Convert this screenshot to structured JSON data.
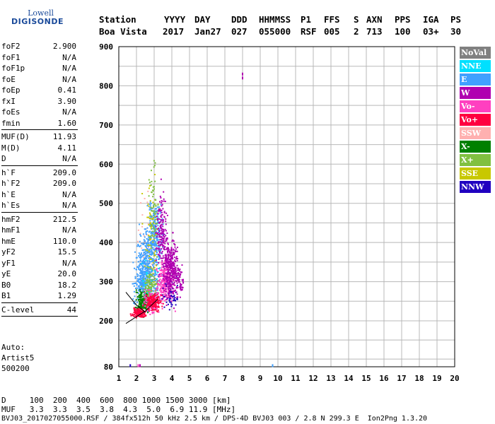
{
  "logo": {
    "line1": "Lowell",
    "line2": "DIGISONDE"
  },
  "header": {
    "labels": [
      "Station",
      "YYYY",
      "DAY",
      "DDD",
      "HHMMSS",
      "P1",
      "FFS",
      "S",
      "AXN",
      "PPS",
      "IGA",
      "PS"
    ],
    "values": [
      "Boa Vista",
      "2017",
      "Jan27",
      "027",
      "055000",
      "RSF",
      "005",
      "2",
      "713",
      "100",
      "03+",
      "30"
    ]
  },
  "params": [
    {
      "name": "foF2",
      "value": "2.900"
    },
    {
      "name": "foF1",
      "value": "N/A"
    },
    {
      "name": "foF1p",
      "value": "N/A"
    },
    {
      "name": "foE",
      "value": "N/A"
    },
    {
      "name": "foEp",
      "value": "0.41"
    },
    {
      "name": "fxI",
      "value": "3.90"
    },
    {
      "name": "foEs",
      "value": "N/A"
    },
    {
      "name": "fmin",
      "value": "1.60",
      "sep_after": true
    },
    {
      "name": "MUF(D)",
      "value": "11.93"
    },
    {
      "name": "M(D)",
      "value": "4.11"
    },
    {
      "name": "D",
      "value": "N/A",
      "sep_after": true
    },
    {
      "name": "h`F",
      "value": "209.0"
    },
    {
      "name": "h`F2",
      "value": "209.0"
    },
    {
      "name": "h`E",
      "value": "N/A"
    },
    {
      "name": "h`Es",
      "value": "N/A",
      "sep_after": true
    },
    {
      "name": "hmF2",
      "value": "212.5"
    },
    {
      "name": "hmF1",
      "value": "N/A"
    },
    {
      "name": "hmE",
      "value": "110.0"
    },
    {
      "name": "yF2",
      "value": "15.5"
    },
    {
      "name": "yF1",
      "value": "N/A"
    },
    {
      "name": "yE",
      "value": "20.0"
    },
    {
      "name": "B0",
      "value": "18.2"
    },
    {
      "name": "B1",
      "value": "1.29",
      "sep_after": true
    },
    {
      "name": "C-level",
      "value": "44",
      "sep_after": true
    }
  ],
  "auto": {
    "line1": "Auto:",
    "line2": "Artist5",
    "line3": "500200"
  },
  "legend": [
    {
      "label": "NoVal",
      "color": "#808080"
    },
    {
      "label": "NNE",
      "color": "#00e0ff"
    },
    {
      "label": "E",
      "color": "#40a0ff"
    },
    {
      "label": "W",
      "color": "#b000b0"
    },
    {
      "label": "Vo-",
      "color": "#ff40c0"
    },
    {
      "label": "Vo+",
      "color": "#ff0040"
    },
    {
      "label": "SSW",
      "color": "#ffb0b0"
    },
    {
      "label": "X-",
      "color": "#008000"
    },
    {
      "label": "X+",
      "color": "#80c040"
    },
    {
      "label": "SSE",
      "color": "#c8c800"
    },
    {
      "label": "NNW",
      "color": "#2000c0"
    }
  ],
  "footer": {
    "d_row": "D     100  200  400  600  800 1000 1500 3000 [km]",
    "muf_row": "MUF   3.3  3.3  3.5  3.8  4.3  5.0  6.9 11.9 [MHz]",
    "file_row": "BVJ03_2017027055000.RSF / 384fx512h 50 kHz 2.5 km / DPS-4D BVJ03 003 / 2.8 N 299.3 E  Ion2Png 1.3.20"
  },
  "chart_data": {
    "type": "scatter",
    "title": "",
    "xlabel": "",
    "ylabel": "",
    "xlim": [
      1,
      20
    ],
    "ylim": [
      80,
      900
    ],
    "x_ticks": [
      1,
      2,
      3,
      4,
      5,
      6,
      7,
      8,
      9,
      10,
      11,
      12,
      13,
      14,
      15,
      16,
      17,
      18,
      19,
      20
    ],
    "y_ticks": [
      80,
      200,
      300,
      400,
      500,
      600,
      700,
      800,
      900
    ],
    "grid": true,
    "series": [
      {
        "name": "E",
        "color": "#40a0ff",
        "clusters": [
          [
            2.6,
            340,
            0.55,
            60,
            360
          ],
          [
            3.0,
            430,
            0.35,
            60,
            220
          ],
          [
            2.3,
            300,
            0.4,
            40,
            160
          ]
        ]
      },
      {
        "name": "W",
        "color": "#b000b0",
        "clusters": [
          [
            3.9,
            340,
            0.35,
            55,
            340
          ],
          [
            3.4,
            430,
            0.25,
            70,
            160
          ],
          [
            4.4,
            300,
            0.2,
            25,
            60
          ]
        ]
      },
      {
        "name": "Vo-",
        "color": "#ff40c0",
        "clusters": [
          [
            3.6,
            300,
            0.4,
            35,
            280
          ],
          [
            2.8,
            250,
            0.35,
            20,
            120
          ]
        ]
      },
      {
        "name": "Vo+",
        "color": "#ff0040",
        "clusters": [
          [
            2.1,
            222,
            0.3,
            8,
            140
          ],
          [
            2.9,
            250,
            0.35,
            15,
            160
          ]
        ]
      },
      {
        "name": "X-",
        "color": "#008000",
        "clusters": [
          [
            2.3,
            250,
            0.3,
            22,
            160
          ]
        ]
      },
      {
        "name": "X+",
        "color": "#80c040",
        "clusters": [
          [
            2.7,
            280,
            0.3,
            30,
            130
          ],
          [
            2.9,
            500,
            0.25,
            90,
            60
          ]
        ]
      },
      {
        "name": "SSE",
        "color": "#c8c800",
        "clusters": [
          [
            2.8,
            420,
            0.35,
            90,
            70
          ]
        ]
      },
      {
        "name": "NNW",
        "color": "#2000c0",
        "clusters": [
          [
            3.9,
            270,
            0.35,
            25,
            60
          ]
        ]
      },
      {
        "name": "SSW",
        "color": "#ffb0b0",
        "clusters": [
          [
            2.5,
            380,
            0.4,
            100,
            40
          ]
        ]
      },
      {
        "name": "NNE",
        "color": "#00e0ff",
        "clusters": [
          [
            2.8,
            300,
            0.4,
            40,
            50
          ]
        ]
      },
      {
        "name": "NoVal",
        "color": "#808080",
        "clusters": [
          [
            2.8,
            320,
            0.45,
            50,
            40
          ]
        ]
      }
    ],
    "isolated_points": [
      {
        "x": 8.0,
        "y": 830,
        "color": "#b000b0"
      },
      {
        "x": 8.0,
        "y": 820,
        "color": "#b000b0"
      },
      {
        "x": 9.7,
        "y": 83,
        "color": "#40a0ff"
      },
      {
        "x": 1.65,
        "y": 83,
        "color": "#2000c0"
      },
      {
        "x": 2.2,
        "y": 83,
        "color": "#b000b0"
      },
      {
        "x": 2.1,
        "y": 83,
        "color": "#ff40c0"
      }
    ],
    "trace_lines": [
      {
        "points": [
          [
            1.4,
            273
          ],
          [
            2.0,
            240
          ],
          [
            2.5,
            222
          ]
        ],
        "color": "#000000"
      },
      {
        "points": [
          [
            1.4,
            193
          ],
          [
            2.5,
            225
          ],
          [
            3.2,
            255
          ]
        ],
        "color": "#000000"
      }
    ]
  }
}
